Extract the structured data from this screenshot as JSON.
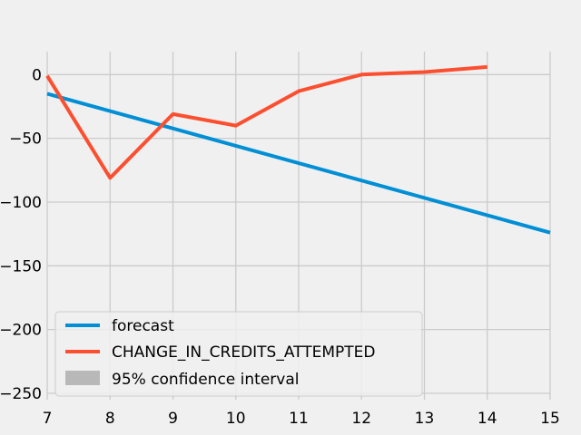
{
  "chart_data": {
    "type": "line",
    "title": "",
    "xlabel": "",
    "ylabel": "",
    "xlim": [
      7,
      15
    ],
    "ylim": [
      -255,
      18
    ],
    "grid": true,
    "legend_position": "lower-left",
    "x_ticks": [
      7,
      8,
      9,
      10,
      11,
      12,
      13,
      14,
      15
    ],
    "x_tick_labels": [
      "7",
      "8",
      "9",
      "10",
      "11",
      "12",
      "13",
      "14",
      "15"
    ],
    "y_ticks": [
      0,
      -50,
      -100,
      -150,
      -200,
      -250
    ],
    "y_tick_labels": [
      "0",
      "−50",
      "−100",
      "−150",
      "−200",
      "−250"
    ],
    "series": [
      {
        "name": "forecast",
        "color": "#008fd5",
        "x": [
          7,
          15
        ],
        "y": [
          -15,
          -124
        ]
      },
      {
        "name": "CHANGE_IN_CREDITS_ATTEMPTED",
        "color": "#fc4f30",
        "x": [
          7,
          8,
          9,
          10,
          11,
          12,
          13,
          14
        ],
        "y": [
          -1,
          -81,
          -31,
          -40,
          -13,
          0,
          2,
          6
        ]
      }
    ],
    "confidence_interval": {
      "name": "95% confidence interval",
      "color": "#b8b8b8"
    },
    "colors": {
      "background": "#f0f0f0",
      "grid": "#cbcbcb"
    }
  }
}
